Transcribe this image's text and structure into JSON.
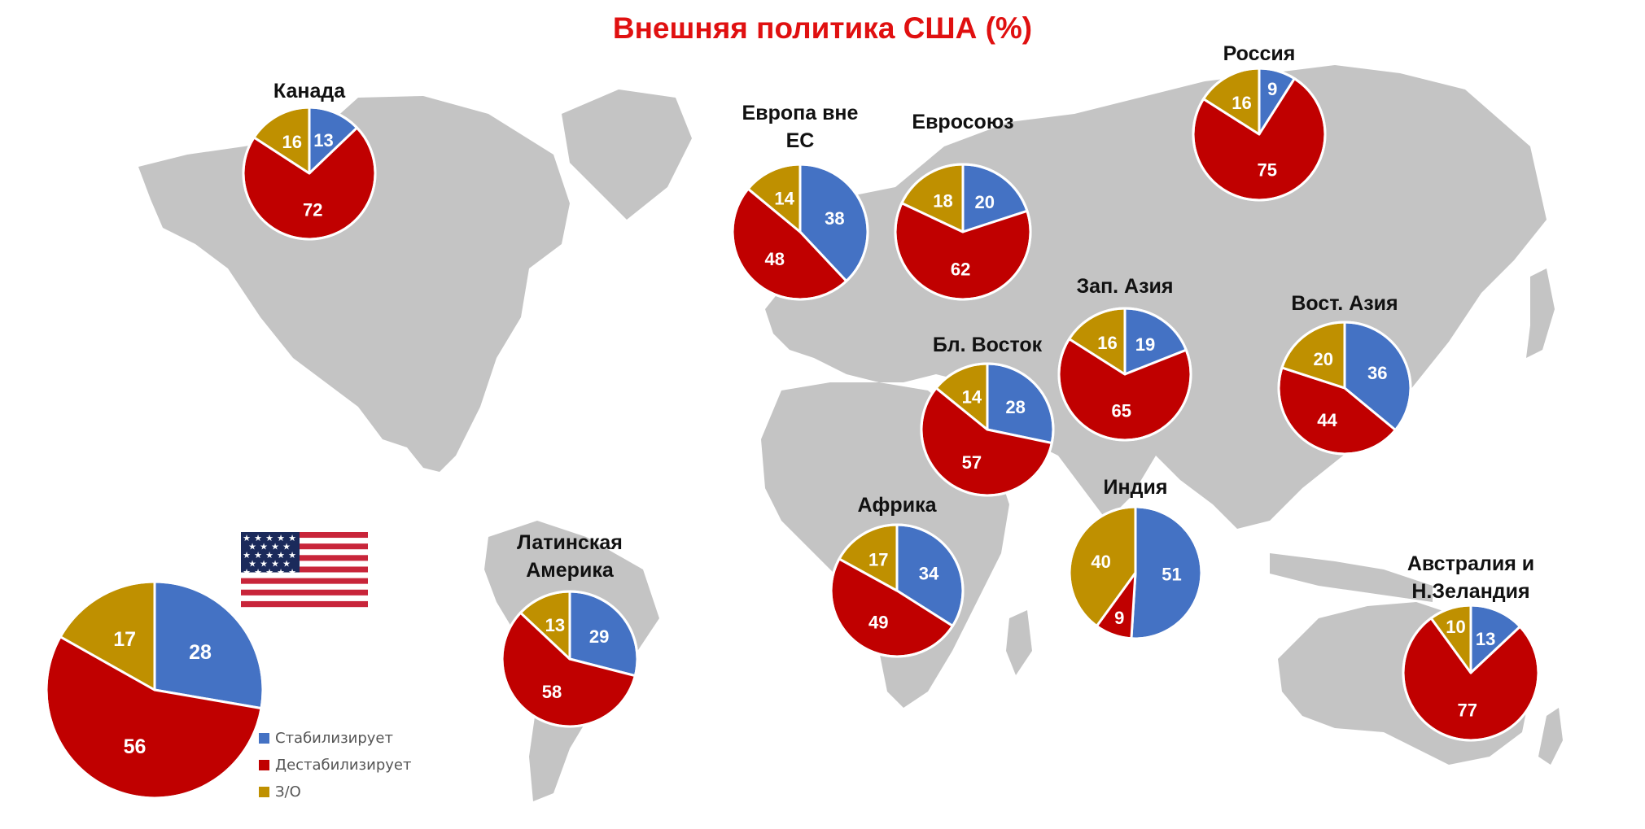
{
  "title": "Внешняя политика США (%)",
  "colors": {
    "stabilizes": "#4472c4",
    "destabilizes": "#c00000",
    "no_answer": "#bf9000",
    "map": "#c4c4c4"
  },
  "legend": {
    "stabilizes": "Стабилизирует",
    "destabilizes": "Дестабилизирует",
    "no_answer": "З/О"
  },
  "flag_icon": "usa-flag-icon",
  "chart_data": {
    "type": "pie",
    "title": "Внешняя политика США (%)",
    "series_names": [
      "Стабилизирует",
      "Дестабилизирует",
      "З/О"
    ],
    "pies": [
      {
        "id": "usa",
        "label": "",
        "values": [
          28,
          56,
          17
        ]
      },
      {
        "id": "canada",
        "label": "Канада",
        "values": [
          13,
          72,
          16
        ]
      },
      {
        "id": "europe-non-eu",
        "label": "Европа вне ЕС",
        "label_lines": [
          "Европа вне",
          "ЕС"
        ],
        "values": [
          38,
          48,
          14
        ]
      },
      {
        "id": "eu",
        "label": "Евросоюз",
        "values": [
          20,
          62,
          18
        ]
      },
      {
        "id": "russia",
        "label": "Россия",
        "values": [
          9,
          75,
          16
        ]
      },
      {
        "id": "west-asia",
        "label": "Зап. Азия",
        "values": [
          19,
          65,
          16
        ]
      },
      {
        "id": "east-asia",
        "label": "Вост. Азия",
        "values": [
          36,
          44,
          20
        ]
      },
      {
        "id": "middle-east",
        "label": "Бл. Восток",
        "values": [
          28,
          57,
          14
        ]
      },
      {
        "id": "india",
        "label": "Индия",
        "values": [
          51,
          9,
          40
        ]
      },
      {
        "id": "africa",
        "label": "Африка",
        "values": [
          34,
          49,
          17
        ]
      },
      {
        "id": "latin-america",
        "label": "Латинская Америка",
        "label_lines": [
          "Латинская",
          "Америка"
        ],
        "values": [
          29,
          58,
          13
        ]
      },
      {
        "id": "australia-nz",
        "label": "Австралия и Н.Зеландия",
        "label_lines": [
          "Австралия и",
          "Н.Зеландия"
        ],
        "values": [
          13,
          77,
          10
        ]
      }
    ]
  }
}
